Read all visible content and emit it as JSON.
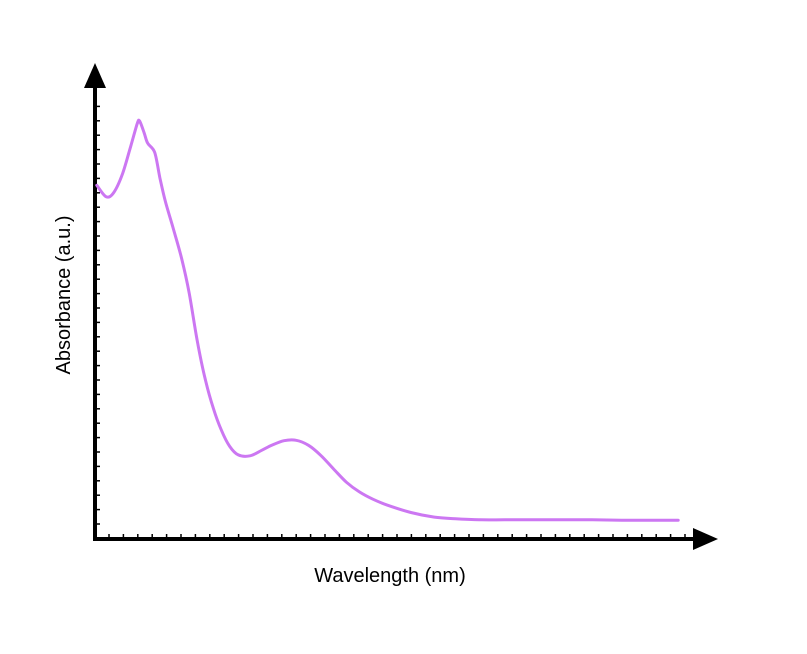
{
  "chart_data": {
    "type": "line",
    "title": "",
    "xlabel": "Wavelength (nm)",
    "ylabel": "Absorbance (a.u.)",
    "x_ticks_labeled": false,
    "y_ticks_labeled": false,
    "grid": false,
    "legend": "none",
    "xlim": [
      0,
      100
    ],
    "ylim": [
      0,
      100
    ],
    "series": [
      {
        "color": "#cc77f2",
        "points": [
          [
            0.3,
            77.4
          ],
          [
            1.9,
            74.9
          ],
          [
            3.2,
            75.8
          ],
          [
            4.7,
            79.9
          ],
          [
            6.1,
            85.9
          ],
          [
            7.2,
            90.8
          ],
          [
            7.6,
            91.5
          ],
          [
            8.4,
            88.9
          ],
          [
            9.0,
            86.6
          ],
          [
            10.2,
            84.6
          ],
          [
            11.1,
            79.0
          ],
          [
            12.0,
            74.0
          ],
          [
            13.3,
            68.3
          ],
          [
            14.8,
            61.4
          ],
          [
            16.1,
            53.8
          ],
          [
            17.5,
            43.2
          ],
          [
            18.8,
            35.2
          ],
          [
            20.2,
            28.7
          ],
          [
            21.6,
            23.8
          ],
          [
            23.0,
            20.3
          ],
          [
            24.5,
            18.4
          ],
          [
            26.5,
            18.2
          ],
          [
            28.5,
            19.4
          ],
          [
            30.2,
            20.5
          ],
          [
            32.3,
            21.5
          ],
          [
            34.4,
            21.6
          ],
          [
            36.5,
            20.5
          ],
          [
            38.6,
            18.3
          ],
          [
            40.8,
            15.3
          ],
          [
            43.0,
            12.4
          ],
          [
            45.2,
            10.3
          ],
          [
            47.5,
            8.7
          ],
          [
            50.0,
            7.4
          ],
          [
            54.0,
            5.8
          ],
          [
            58.0,
            4.8
          ],
          [
            62.0,
            4.4
          ],
          [
            66.0,
            4.2
          ],
          [
            70.0,
            4.2
          ],
          [
            75.0,
            4.2
          ],
          [
            80.0,
            4.2
          ],
          [
            85.0,
            4.2
          ],
          [
            90.0,
            4.1
          ],
          [
            95.0,
            4.1
          ],
          [
            99.7,
            4.1
          ]
        ]
      }
    ]
  }
}
